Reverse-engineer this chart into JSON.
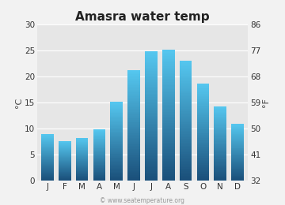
{
  "title": "Amasra water temp",
  "months": [
    "J",
    "F",
    "M",
    "A",
    "M",
    "J",
    "J",
    "A",
    "S",
    "O",
    "N",
    "D"
  ],
  "temps_c": [
    8.9,
    7.6,
    8.2,
    9.8,
    15.1,
    21.2,
    24.8,
    25.2,
    23.1,
    18.6,
    14.3,
    10.9
  ],
  "ylim_c": [
    0,
    30
  ],
  "yticks_c": [
    0,
    5,
    10,
    15,
    20,
    25,
    30
  ],
  "yticks_f": [
    32,
    41,
    50,
    59,
    68,
    77,
    86
  ],
  "ylabel_left": "°C",
  "ylabel_right": "°F",
  "bar_color_top": "#55c8f0",
  "bar_color_bottom": "#1a4f7a",
  "background_color": "#f2f2f2",
  "plot_bg_color": "#e6e6e6",
  "grid_color": "#ffffff",
  "watermark": "© www.seatemperature.org",
  "title_fontsize": 11,
  "tick_fontsize": 7.5,
  "label_fontsize": 8,
  "watermark_fontsize": 5.5
}
